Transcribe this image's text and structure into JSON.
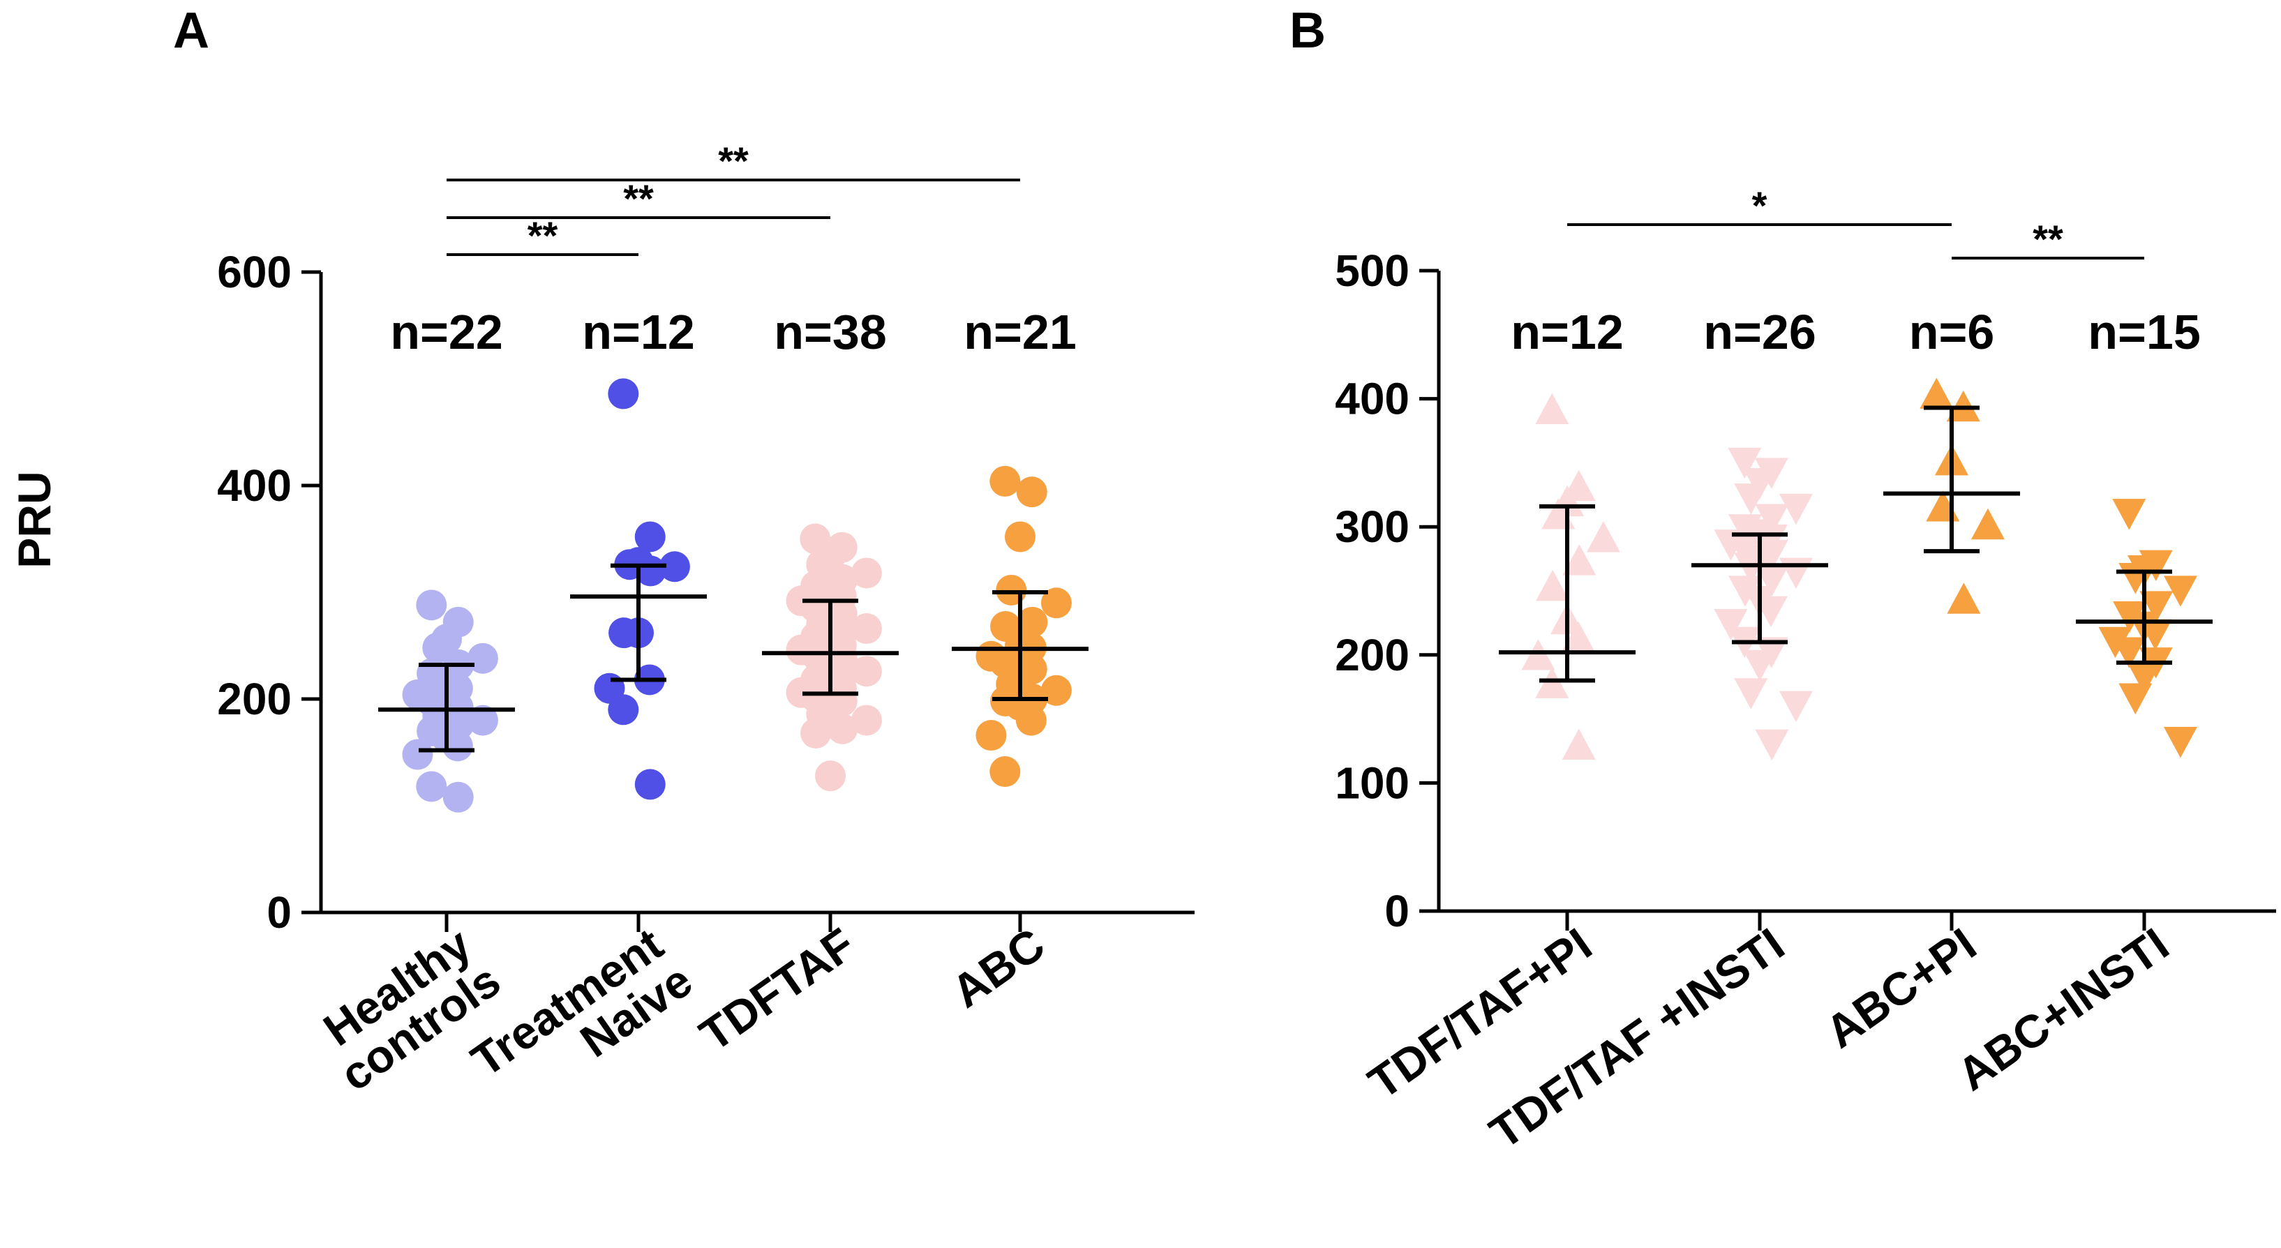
{
  "chart_data": [
    {
      "panel": "A",
      "type": "scatter",
      "ylabel": "PRU",
      "ylim": [
        0,
        600
      ],
      "yticks": [
        0,
        200,
        400,
        600
      ],
      "categories": [
        {
          "label_lines": [
            "Healthy",
            "controls"
          ],
          "n_label": "n=22",
          "color": "#b3b3f2",
          "marker": "circle",
          "mean": 190,
          "sd_low": 152,
          "sd_high": 232,
          "values": [
            288,
            272,
            256,
            248,
            238,
            232,
            224,
            216,
            210,
            204,
            198,
            192,
            188,
            184,
            180,
            176,
            170,
            164,
            156,
            148,
            118,
            108
          ]
        },
        {
          "label_lines": [
            "Treatment",
            "Naive"
          ],
          "n_label": "n=12",
          "color": "#5050e6",
          "marker": "circle",
          "mean": 296,
          "sd_low": 218,
          "sd_high": 325,
          "values": [
            486,
            352,
            328,
            326,
            324,
            320,
            262,
            262,
            218,
            210,
            190,
            120
          ]
        },
        {
          "label_lines": [
            "TDFTAF"
          ],
          "n_label": "n=38",
          "color": "#f9d0d0",
          "marker": "circle",
          "mean": 243,
          "sd_low": 205,
          "sd_high": 292,
          "values": [
            350,
            342,
            334,
            326,
            318,
            312,
            306,
            300,
            296,
            292,
            286,
            280,
            276,
            270,
            266,
            262,
            258,
            254,
            250,
            246,
            242,
            238,
            234,
            230,
            226,
            222,
            218,
            214,
            210,
            206,
            202,
            198,
            192,
            186,
            180,
            172,
            168,
            128
          ]
        },
        {
          "label_lines": [
            "ABC"
          ],
          "n_label": "n=21",
          "color": "#f6a040",
          "marker": "circle",
          "mean": 247,
          "sd_low": 200,
          "sd_high": 300,
          "values": [
            404,
            394,
            352,
            302,
            290,
            272,
            268,
            250,
            248,
            240,
            234,
            228,
            226,
            214,
            208,
            200,
            198,
            194,
            180,
            166,
            132
          ]
        }
      ],
      "significance": [
        {
          "from": 0,
          "to": 1,
          "label": "**"
        },
        {
          "from": 0,
          "to": 2,
          "label": "**"
        },
        {
          "from": 0,
          "to": 3,
          "label": "**"
        }
      ]
    },
    {
      "panel": "B",
      "type": "scatter",
      "ylabel": "",
      "ylim": [
        0,
        500
      ],
      "yticks": [
        0,
        100,
        200,
        300,
        400,
        500
      ],
      "categories": [
        {
          "label_lines": [
            "TDF/TAF+PI"
          ],
          "n_label": "n=12",
          "color": "#fadada",
          "marker": "triangle-up",
          "mean": 202,
          "sd_low": 180,
          "sd_high": 316,
          "values": [
            390,
            330,
            318,
            308,
            290,
            272,
            252,
            226,
            212,
            198,
            176,
            128
          ]
        },
        {
          "label_lines": [
            "TDF/TAF +INSTI"
          ],
          "n_label": "n=26",
          "color": "#fadada",
          "marker": "triangle-down",
          "mean": 270,
          "sd_low": 210,
          "sd_high": 294,
          "values": [
            352,
            344,
            336,
            324,
            316,
            308,
            300,
            296,
            292,
            288,
            284,
            280,
            276,
            270,
            266,
            260,
            252,
            244,
            236,
            226,
            212,
            204,
            194,
            172,
            162,
            132
          ]
        },
        {
          "label_lines": [
            "ABC+PI"
          ],
          "n_label": "n=6",
          "color": "#f6a040",
          "marker": "triangle-up",
          "mean": 326,
          "sd_low": 281,
          "sd_high": 393,
          "values": [
            402,
            392,
            350,
            314,
            300,
            242
          ]
        },
        {
          "label_lines": [
            "ABC+INSTI"
          ],
          "n_label": "n=15",
          "color": "#f6a040",
          "marker": "triangle-down",
          "mean": 226,
          "sd_low": 194,
          "sd_high": 265,
          "values": [
            312,
            272,
            268,
            262,
            252,
            240,
            232,
            224,
            218,
            212,
            204,
            196,
            184,
            168,
            134
          ]
        }
      ],
      "significance": [
        {
          "from": 0,
          "to": 2,
          "label": "*"
        },
        {
          "from": 2,
          "to": 3,
          "label": "**"
        }
      ]
    }
  ]
}
